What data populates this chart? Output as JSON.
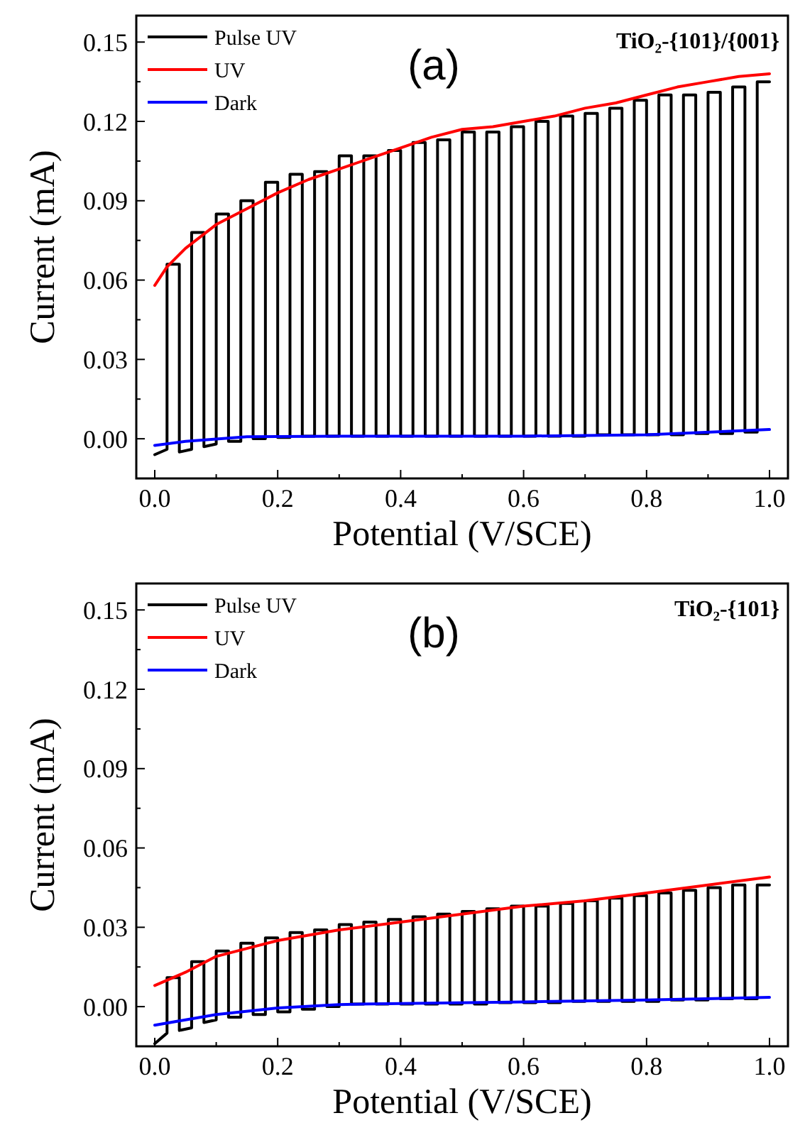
{
  "chart_data": [
    {
      "type": "line",
      "xlabel": "Potential (V/SCE)",
      "ylabel": "Current (mA)",
      "annotations": [
        "(a)",
        "TiO₂-{101}/{001}"
      ],
      "legend": "top left",
      "line_style": "solid",
      "xlim": [
        -0.03,
        1.03
      ],
      "ylim": [
        -0.015,
        0.16
      ],
      "xticks": [
        {
          "value": 0,
          "label": "0.0"
        },
        {
          "value": 0.1,
          "label": null
        },
        {
          "value": 0.2,
          "label": "0.2"
        },
        {
          "value": 0.3,
          "label": null
        },
        {
          "value": 0.4,
          "label": "0.4"
        },
        {
          "value": 0.5,
          "label": null
        },
        {
          "value": 0.6,
          "label": "0.6"
        },
        {
          "value": 0.7,
          "label": null
        },
        {
          "value": 0.8,
          "label": "0.8"
        },
        {
          "value": 0.9,
          "label": null
        },
        {
          "value": 1,
          "label": "1.0"
        }
      ],
      "yticks": [
        {
          "value": 0,
          "label": "0.00"
        },
        {
          "value": 0.015,
          "label": null
        },
        {
          "value": 0.03,
          "label": "0.03"
        },
        {
          "value": 0.045,
          "label": null
        },
        {
          "value": 0.06,
          "label": "0.06"
        },
        {
          "value": 0.075,
          "label": null
        },
        {
          "value": 0.09,
          "label": "0.09"
        },
        {
          "value": 0.105,
          "label": null
        },
        {
          "value": 0.12,
          "label": "0.12"
        },
        {
          "value": 0.135,
          "label": null
        },
        {
          "value": 0.15,
          "label": "0.15"
        }
      ],
      "series": [
        {
          "name": "Pulse UV",
          "color": "#000000",
          "x": [
            0,
            0.02,
            0.02,
            0.04,
            0.04,
            0.06,
            0.06,
            0.08,
            0.08,
            0.1,
            0.1,
            0.12,
            0.12,
            0.14,
            0.14,
            0.16,
            0.16,
            0.18,
            0.18,
            0.2,
            0.2,
            0.22,
            0.22,
            0.24,
            0.24,
            0.26,
            0.26,
            0.28,
            0.28,
            0.3,
            0.3,
            0.32,
            0.32,
            0.34,
            0.34,
            0.36,
            0.36,
            0.38,
            0.38,
            0.4,
            0.4,
            0.42,
            0.42,
            0.44,
            0.44,
            0.46,
            0.46,
            0.48,
            0.48,
            0.5,
            0.5,
            0.52,
            0.52,
            0.54,
            0.54,
            0.56,
            0.56,
            0.58,
            0.58,
            0.6,
            0.6,
            0.62,
            0.62,
            0.64,
            0.64,
            0.66,
            0.66,
            0.68,
            0.68,
            0.7,
            0.7,
            0.72,
            0.72,
            0.74,
            0.74,
            0.76,
            0.76,
            0.78,
            0.78,
            0.8,
            0.8,
            0.82,
            0.82,
            0.84,
            0.84,
            0.86,
            0.86,
            0.88,
            0.88,
            0.9,
            0.9,
            0.92,
            0.92,
            0.94,
            0.94,
            0.96,
            0.96,
            0.98,
            0.98,
            1.0
          ],
          "values": [
            -0.006,
            -0.004,
            0.066,
            0.066,
            -0.005,
            -0.004,
            0.078,
            0.078,
            -0.003,
            -0.002,
            0.085,
            0.085,
            -0.001,
            -0.001,
            0.09,
            0.09,
            0.0,
            0.0,
            0.097,
            0.097,
            0.0005,
            0.0005,
            0.1,
            0.1,
            0.001,
            0.001,
            0.101,
            0.101,
            0.001,
            0.001,
            0.107,
            0.107,
            0.001,
            0.001,
            0.107,
            0.107,
            0.001,
            0.001,
            0.109,
            0.109,
            0.001,
            0.001,
            0.112,
            0.112,
            0.001,
            0.001,
            0.113,
            0.113,
            0.001,
            0.001,
            0.116,
            0.116,
            0.001,
            0.001,
            0.116,
            0.116,
            0.001,
            0.001,
            0.118,
            0.118,
            0.001,
            0.001,
            0.12,
            0.12,
            0.001,
            0.001,
            0.122,
            0.122,
            0.001,
            0.001,
            0.123,
            0.123,
            0.0015,
            0.0015,
            0.125,
            0.125,
            0.0015,
            0.0015,
            0.128,
            0.128,
            0.0015,
            0.0015,
            0.13,
            0.13,
            0.0015,
            0.0015,
            0.13,
            0.13,
            0.002,
            0.002,
            0.131,
            0.131,
            0.002,
            0.002,
            0.133,
            0.133,
            0.0025,
            0.0025,
            0.135,
            0.135
          ]
        },
        {
          "name": "UV",
          "color": "#ff0000",
          "x": [
            0,
            0.02,
            0.05,
            0.1,
            0.15,
            0.2,
            0.25,
            0.3,
            0.35,
            0.4,
            0.45,
            0.5,
            0.55,
            0.6,
            0.65,
            0.7,
            0.75,
            0.8,
            0.85,
            0.9,
            0.95,
            1.0
          ],
          "values": [
            0.058,
            0.065,
            0.072,
            0.081,
            0.087,
            0.093,
            0.098,
            0.102,
            0.106,
            0.11,
            0.114,
            0.117,
            0.118,
            0.12,
            0.122,
            0.125,
            0.127,
            0.13,
            0.133,
            0.135,
            0.137,
            0.138
          ]
        },
        {
          "name": "Dark",
          "color": "#0000ff",
          "x": [
            0,
            0.05,
            0.15,
            0.3,
            0.6,
            0.8,
            1.0
          ],
          "values": [
            -0.0025,
            -0.001,
            0.0008,
            0.001,
            0.001,
            0.0015,
            0.0035
          ]
        }
      ]
    },
    {
      "type": "line",
      "xlabel": "Potential (V/SCE)",
      "ylabel": "Current (mA)",
      "annotations": [
        "(b)",
        "TiO₂-{101}"
      ],
      "legend": "top left",
      "line_style": "solid",
      "xlim": [
        -0.03,
        1.03
      ],
      "ylim": [
        -0.015,
        0.16
      ],
      "xticks": [
        {
          "value": 0,
          "label": "0.0"
        },
        {
          "value": 0.1,
          "label": null
        },
        {
          "value": 0.2,
          "label": "0.2"
        },
        {
          "value": 0.3,
          "label": null
        },
        {
          "value": 0.4,
          "label": "0.4"
        },
        {
          "value": 0.5,
          "label": null
        },
        {
          "value": 0.6,
          "label": "0.6"
        },
        {
          "value": 0.7,
          "label": null
        },
        {
          "value": 0.8,
          "label": "0.8"
        },
        {
          "value": 0.9,
          "label": null
        },
        {
          "value": 1,
          "label": "1.0"
        }
      ],
      "yticks": [
        {
          "value": 0,
          "label": "0.00"
        },
        {
          "value": 0.015,
          "label": null
        },
        {
          "value": 0.03,
          "label": "0.03"
        },
        {
          "value": 0.045,
          "label": null
        },
        {
          "value": 0.06,
          "label": "0.06"
        },
        {
          "value": 0.075,
          "label": null
        },
        {
          "value": 0.09,
          "label": "0.09"
        },
        {
          "value": 0.105,
          "label": null
        },
        {
          "value": 0.12,
          "label": "0.12"
        },
        {
          "value": 0.135,
          "label": null
        },
        {
          "value": 0.15,
          "label": "0.15"
        }
      ],
      "series": [
        {
          "name": "Pulse UV",
          "color": "#000000",
          "x": [
            0,
            0.02,
            0.02,
            0.04,
            0.04,
            0.06,
            0.06,
            0.08,
            0.08,
            0.1,
            0.1,
            0.12,
            0.12,
            0.14,
            0.14,
            0.16,
            0.16,
            0.18,
            0.18,
            0.2,
            0.2,
            0.22,
            0.22,
            0.24,
            0.24,
            0.26,
            0.26,
            0.28,
            0.28,
            0.3,
            0.3,
            0.32,
            0.32,
            0.34,
            0.34,
            0.36,
            0.36,
            0.38,
            0.38,
            0.4,
            0.4,
            0.42,
            0.42,
            0.44,
            0.44,
            0.46,
            0.46,
            0.48,
            0.48,
            0.5,
            0.5,
            0.52,
            0.52,
            0.54,
            0.54,
            0.56,
            0.56,
            0.58,
            0.58,
            0.6,
            0.6,
            0.62,
            0.62,
            0.64,
            0.64,
            0.66,
            0.66,
            0.68,
            0.68,
            0.7,
            0.7,
            0.72,
            0.72,
            0.74,
            0.74,
            0.76,
            0.76,
            0.78,
            0.78,
            0.8,
            0.8,
            0.82,
            0.82,
            0.84,
            0.84,
            0.86,
            0.86,
            0.88,
            0.88,
            0.9,
            0.9,
            0.92,
            0.92,
            0.94,
            0.94,
            0.96,
            0.96,
            0.98,
            0.98,
            1.0
          ],
          "values": [
            -0.014,
            -0.01,
            0.011,
            0.011,
            -0.009,
            -0.008,
            0.017,
            0.017,
            -0.006,
            -0.005,
            0.021,
            0.021,
            -0.004,
            -0.004,
            0.024,
            0.024,
            -0.003,
            -0.003,
            0.026,
            0.026,
            -0.002,
            -0.002,
            0.028,
            0.028,
            -0.001,
            -0.001,
            0.029,
            0.029,
            0.0,
            0.0,
            0.031,
            0.031,
            0.001,
            0.001,
            0.032,
            0.032,
            0.001,
            0.001,
            0.033,
            0.033,
            0.001,
            0.001,
            0.034,
            0.034,
            0.001,
            0.001,
            0.035,
            0.035,
            0.001,
            0.001,
            0.036,
            0.036,
            0.001,
            0.001,
            0.037,
            0.037,
            0.0015,
            0.0015,
            0.038,
            0.038,
            0.0015,
            0.0015,
            0.038,
            0.038,
            0.0015,
            0.0015,
            0.039,
            0.039,
            0.002,
            0.002,
            0.04,
            0.04,
            0.002,
            0.002,
            0.041,
            0.041,
            0.002,
            0.002,
            0.042,
            0.042,
            0.002,
            0.002,
            0.043,
            0.043,
            0.0025,
            0.0025,
            0.044,
            0.044,
            0.0025,
            0.0025,
            0.045,
            0.045,
            0.003,
            0.003,
            0.046,
            0.046,
            0.003,
            0.003,
            0.046,
            0.046
          ]
        },
        {
          "name": "UV",
          "color": "#ff0000",
          "x": [
            0,
            0.05,
            0.1,
            0.15,
            0.2,
            0.3,
            0.4,
            0.5,
            0.6,
            0.7,
            0.8,
            0.9,
            1.0
          ],
          "values": [
            0.008,
            0.013,
            0.019,
            0.022,
            0.025,
            0.029,
            0.032,
            0.035,
            0.038,
            0.04,
            0.043,
            0.046,
            0.049
          ]
        },
        {
          "name": "Dark",
          "color": "#0000ff",
          "x": [
            0,
            0.05,
            0.1,
            0.2,
            0.3,
            0.4,
            0.6,
            0.8,
            1.0
          ],
          "values": [
            -0.007,
            -0.005,
            -0.003,
            -0.0005,
            0.0008,
            0.0012,
            0.0018,
            0.0025,
            0.0035
          ]
        }
      ]
    }
  ]
}
